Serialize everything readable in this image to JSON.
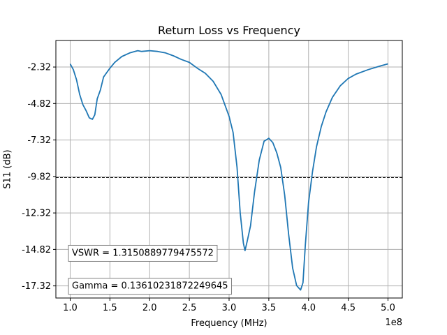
{
  "chart_data": {
    "type": "line",
    "title": "Return Loss vs Frequency",
    "xlabel": "Frequency (MHz)",
    "ylabel": "S11 (dB)",
    "x_offset_label": "1e8",
    "xlim": [
      82000000,
      518000000
    ],
    "ylim": [
      -18.15,
      -0.5
    ],
    "x_ticks": [
      100000000,
      150000000,
      200000000,
      250000000,
      300000000,
      350000000,
      400000000,
      450000000,
      500000000
    ],
    "x_tick_labels": [
      "1.0",
      "1.5",
      "2.0",
      "2.5",
      "3.0",
      "3.5",
      "4.0",
      "4.5",
      "5.0"
    ],
    "y_ticks": [
      -2.32,
      -4.82,
      -7.32,
      -9.82,
      -12.32,
      -14.82,
      -17.32
    ],
    "y_tick_labels": [
      "-2.32",
      "-4.82",
      "-7.32",
      "-9.82",
      "-12.32",
      "-14.82",
      "-17.32"
    ],
    "grid": true,
    "line_color": "#1f77b4",
    "reference_line": {
      "y": -9.9,
      "style": "dashed",
      "color": "#000000"
    },
    "series": [
      {
        "x": [
          100000000,
          104000000,
          108000000,
          112000000,
          116000000,
          120000000,
          124000000,
          128000000,
          131000000,
          134000000,
          138000000,
          142000000,
          146000000,
          150000000,
          156000000,
          165000000,
          175000000,
          185000000,
          190000000,
          200000000,
          210000000,
          220000000,
          230000000,
          240000000,
          250000000,
          260000000,
          270000000,
          280000000,
          290000000,
          300000000,
          305000000,
          310000000,
          314000000,
          318000000,
          320000000,
          323000000,
          327000000,
          332000000,
          338000000,
          344000000,
          350000000,
          355000000,
          360000000,
          365000000,
          370000000,
          375000000,
          380000000,
          385000000,
          390000000,
          393000000,
          396000000,
          400000000,
          405000000,
          410000000,
          416000000,
          422000000,
          430000000,
          440000000,
          450000000,
          460000000,
          475000000,
          490000000,
          500000000
        ],
        "y": [
          -2.1,
          -2.5,
          -3.2,
          -4.2,
          -4.9,
          -5.3,
          -5.8,
          -5.9,
          -5.6,
          -4.5,
          -3.9,
          -3.0,
          -2.7,
          -2.4,
          -2.0,
          -1.6,
          -1.35,
          -1.2,
          -1.25,
          -1.2,
          -1.25,
          -1.35,
          -1.55,
          -1.8,
          -2.0,
          -2.4,
          -2.75,
          -3.3,
          -4.2,
          -5.7,
          -6.8,
          -9.2,
          -12.3,
          -14.4,
          -14.9,
          -14.2,
          -13.2,
          -10.9,
          -8.7,
          -7.4,
          -7.2,
          -7.5,
          -8.2,
          -9.2,
          -11.1,
          -13.8,
          -16.1,
          -17.3,
          -17.6,
          -17.1,
          -14.5,
          -11.6,
          -9.5,
          -7.8,
          -6.4,
          -5.4,
          -4.4,
          -3.6,
          -3.1,
          -2.8,
          -2.5,
          -2.25,
          -2.1
        ]
      }
    ],
    "annotations": [
      {
        "text": "VSWR = 1.3150889779475572",
        "x": 0.0,
        "y": -15.04,
        "boxed": true
      },
      {
        "text": "Gamma = 0.13610231872249645",
        "x": 0.0,
        "y": -17.3,
        "boxed": true
      }
    ]
  }
}
